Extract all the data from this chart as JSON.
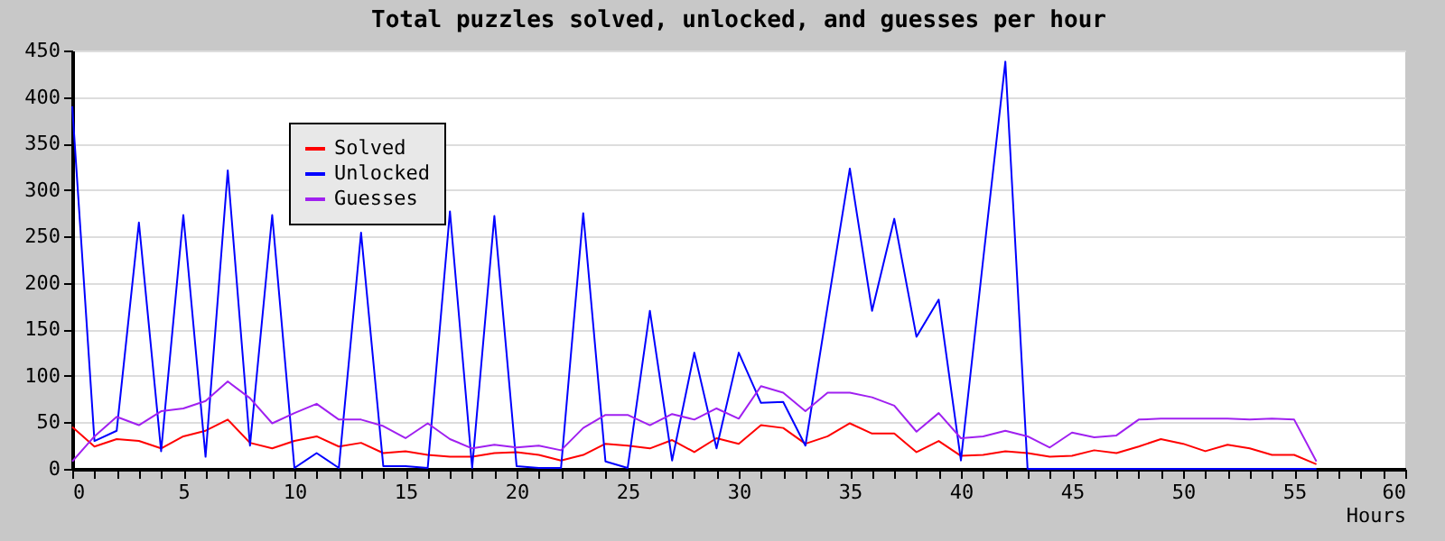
{
  "chart_data": {
    "type": "line",
    "title": "Total puzzles solved, unlocked, and guesses per hour",
    "xlabel": "Hours",
    "x": [
      0,
      1,
      2,
      3,
      4,
      5,
      6,
      7,
      8,
      9,
      10,
      11,
      12,
      13,
      14,
      15,
      16,
      17,
      18,
      19,
      20,
      21,
      22,
      23,
      24,
      25,
      26,
      27,
      28,
      29,
      30,
      31,
      32,
      33,
      34,
      35,
      36,
      37,
      38,
      39,
      40,
      41,
      42,
      43,
      44,
      45,
      46,
      47,
      48,
      49,
      50,
      51,
      52,
      53,
      54,
      55,
      56
    ],
    "series": [
      {
        "name": "Solved",
        "color": "#ff0000",
        "values": [
          45,
          24,
          32,
          30,
          22,
          35,
          41,
          53,
          28,
          22,
          30,
          35,
          24,
          28,
          17,
          19,
          15,
          13,
          13,
          17,
          18,
          15,
          9,
          15,
          27,
          25,
          22,
          31,
          18,
          33,
          27,
          47,
          44,
          27,
          35,
          49,
          38,
          38,
          18,
          30,
          14,
          15,
          19,
          17,
          13,
          14,
          20,
          17,
          24,
          32,
          27,
          19,
          26,
          22,
          15,
          15,
          5
        ]
      },
      {
        "name": "Unlocked",
        "color": "#0000ff",
        "values": [
          390,
          30,
          41,
          265,
          19,
          273,
          13,
          321,
          25,
          273,
          1,
          17,
          1,
          254,
          3,
          3,
          1,
          277,
          1,
          272,
          3,
          1,
          1,
          275,
          8,
          1,
          170,
          9,
          125,
          22,
          125,
          71,
          72,
          25,
          175,
          323,
          170,
          269,
          142,
          182,
          9,
          225,
          438,
          0,
          0,
          0,
          0,
          0,
          0,
          0,
          0,
          0,
          0,
          0,
          0,
          0,
          0
        ]
      },
      {
        "name": "Guesses",
        "color": "#a020f0",
        "values": [
          8,
          35,
          56,
          47,
          62,
          65,
          73,
          94,
          76,
          49,
          60,
          70,
          53,
          53,
          46,
          33,
          49,
          32,
          22,
          26,
          23,
          25,
          20,
          44,
          58,
          58,
          47,
          59,
          53,
          65,
          54,
          89,
          82,
          62,
          82,
          82,
          77,
          68,
          40,
          60,
          33,
          35,
          41,
          35,
          23,
          39,
          34,
          36,
          53,
          54,
          54,
          54,
          54,
          53,
          54,
          53,
          8
        ]
      }
    ],
    "xlim": [
      0,
      60
    ],
    "xticks": [
      0,
      {
        "value": 1,
        "label": null
      },
      {
        "value": 2,
        "label": null
      },
      {
        "value": 3,
        "label": null
      },
      {
        "value": 4,
        "label": null
      },
      5,
      {
        "value": 6,
        "label": null
      },
      {
        "value": 7,
        "label": null
      },
      {
        "value": 8,
        "label": null
      },
      {
        "value": 9,
        "label": null
      },
      10,
      {
        "value": 11,
        "label": null
      },
      {
        "value": 12,
        "label": null
      },
      {
        "value": 13,
        "label": null
      },
      {
        "value": 14,
        "label": null
      },
      15,
      {
        "value": 16,
        "label": null
      },
      {
        "value": 17,
        "label": null
      },
      {
        "value": 18,
        "label": null
      },
      {
        "value": 19,
        "label": null
      },
      20,
      {
        "value": 21,
        "label": null
      },
      {
        "value": 22,
        "label": null
      },
      {
        "value": 23,
        "label": null
      },
      {
        "value": 24,
        "label": null
      },
      25,
      {
        "value": 26,
        "label": null
      },
      {
        "value": 27,
        "label": null
      },
      {
        "value": 28,
        "label": null
      },
      {
        "value": 29,
        "label": null
      },
      30,
      {
        "value": 31,
        "label": null
      },
      {
        "value": 32,
        "label": null
      },
      {
        "value": 33,
        "label": null
      },
      {
        "value": 34,
        "label": null
      },
      35,
      {
        "value": 36,
        "label": null
      },
      {
        "value": 37,
        "label": null
      },
      {
        "value": 38,
        "label": null
      },
      {
        "value": 39,
        "label": null
      },
      40,
      {
        "value": 41,
        "label": null
      },
      {
        "value": 42,
        "label": null
      },
      {
        "value": 43,
        "label": null
      },
      {
        "value": 44,
        "label": null
      },
      45,
      {
        "value": 46,
        "label": null
      },
      {
        "value": 47,
        "label": null
      },
      {
        "value": 48,
        "label": null
      },
      {
        "value": 49,
        "label": null
      },
      50,
      {
        "value": 51,
        "label": null
      },
      {
        "value": 52,
        "label": null
      },
      {
        "value": 53,
        "label": null
      },
      {
        "value": 54,
        "label": null
      },
      55,
      {
        "value": 56,
        "label": null
      },
      {
        "value": 57,
        "label": null
      },
      {
        "value": 58,
        "label": null
      },
      {
        "value": 59,
        "label": null
      },
      60
    ],
    "ylim": [
      0,
      450
    ],
    "yticks": [
      0,
      50,
      100,
      150,
      200,
      250,
      300,
      350,
      400,
      450
    ],
    "grid": "y",
    "legend": "top left",
    "marker": "none",
    "line_style": "solid"
  }
}
